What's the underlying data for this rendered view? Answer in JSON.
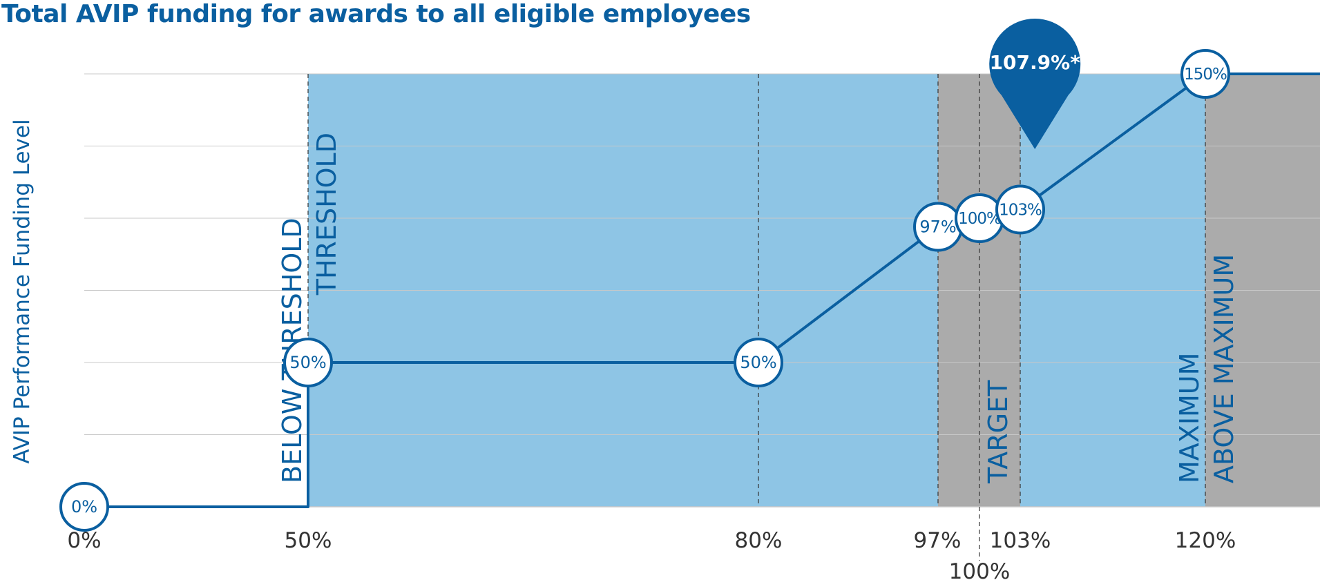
{
  "colors": {
    "brand": "#0a5fa0",
    "primary_zone": "#8ec5e5",
    "gray_zone": "#ababab",
    "gridline": "#c8c8c8",
    "axis_text": "#333333",
    "white": "#ffffff"
  },
  "chart_data": {
    "type": "line",
    "title": "Total AVIP funding for awards to all eligible employees",
    "ylabel": "AVIP Performance Funding Level",
    "xlabel": "",
    "xlim": [
      0,
      125
    ],
    "ylim": [
      0,
      150
    ],
    "grid": true,
    "x_ticks": [
      {
        "x": 0,
        "label": "0%"
      },
      {
        "x": 50,
        "label": "50%"
      },
      {
        "x": 80,
        "label": "80%"
      },
      {
        "x": 97,
        "label": "97%"
      },
      {
        "x": 100,
        "label": "100%"
      },
      {
        "x": 103,
        "label": "103%"
      },
      {
        "x": 120,
        "label": "120%"
      }
    ],
    "y_gridlines": [
      25,
      50,
      75,
      100,
      125,
      150
    ],
    "zones": [
      {
        "from": 50,
        "to": 97,
        "color": "primary"
      },
      {
        "from": 97,
        "to": 103,
        "color": "gray"
      },
      {
        "from": 103,
        "to": 120,
        "color": "primary"
      },
      {
        "from": 120,
        "to": 125,
        "color": "gray"
      }
    ],
    "dashed_markers": [
      50,
      80,
      97,
      100,
      103,
      120
    ],
    "series": [
      {
        "points": [
          {
            "x": 0,
            "y": 0
          },
          {
            "x": 50,
            "y": 0
          },
          {
            "x": 50,
            "y": 50
          },
          {
            "x": 80,
            "y": 50
          },
          {
            "x": 97,
            "y": 97
          },
          {
            "x": 100,
            "y": 100
          },
          {
            "x": 103,
            "y": 103
          },
          {
            "x": 120,
            "y": 150
          },
          {
            "x": 125,
            "y": 150
          }
        ]
      }
    ],
    "point_labels": [
      {
        "x": 0,
        "y": 0,
        "label": "0%"
      },
      {
        "x": 50,
        "y": 50,
        "label": "50%"
      },
      {
        "x": 80,
        "y": 50,
        "label": "50%"
      },
      {
        "x": 97,
        "y": 97,
        "label": "97%"
      },
      {
        "x": 100,
        "y": 100,
        "label": "100%"
      },
      {
        "x": 103,
        "y": 103,
        "label": "103%"
      },
      {
        "x": 120,
        "y": 150,
        "label": "150%"
      }
    ],
    "zone_labels": [
      {
        "x": 50,
        "text": "BELOW THRESHOLD",
        "side": "left",
        "anchor": "bottom"
      },
      {
        "x": 50,
        "text": "THRESHOLD",
        "side": "right",
        "anchor": "top"
      },
      {
        "x": 100,
        "text": "TARGET",
        "side": "right",
        "anchor": "bottom"
      },
      {
        "x": 120,
        "text": "MAXIMUM",
        "side": "left",
        "anchor": "bottom"
      },
      {
        "x": 120,
        "text": "ABOVE MAXIMUM",
        "side": "right",
        "anchor": "bottom"
      }
    ],
    "result_marker": {
      "x": 104.6,
      "label": "107.9%*"
    }
  }
}
